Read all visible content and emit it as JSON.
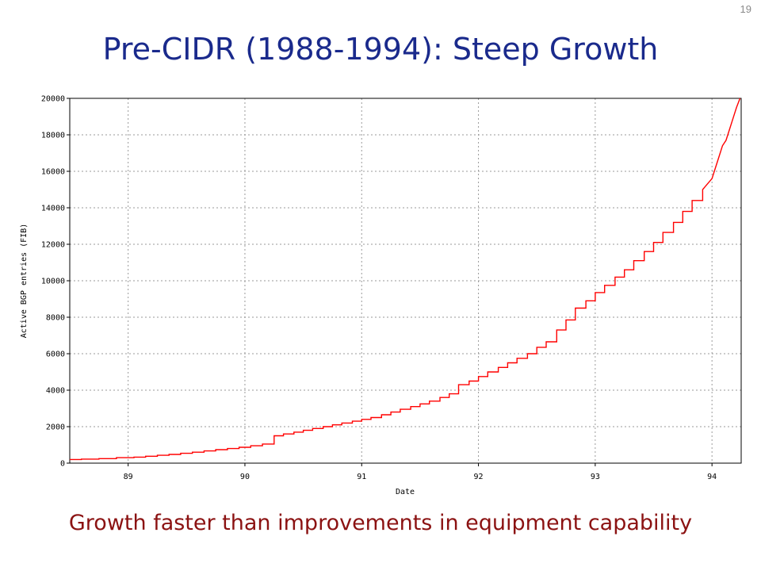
{
  "slide": {
    "number": "19",
    "title": "Pre-CIDR (1988-1994): Steep Growth",
    "caption": "Growth faster than improvements in equipment capability"
  },
  "colors": {
    "title": "#1a2a8c",
    "caption": "#8b1212",
    "series": "#ff0000",
    "grid": "#9a9a9a"
  },
  "chart_data": {
    "type": "line",
    "title": "",
    "xlabel": "Date",
    "ylabel": "Active BGP entries (FIB)",
    "xlim": [
      88.5,
      94.25
    ],
    "ylim": [
      0,
      20000
    ],
    "x_ticks": [
      "89",
      "90",
      "91",
      "92",
      "93",
      "94"
    ],
    "y_ticks": [
      "0",
      "2000",
      "4000",
      "6000",
      "8000",
      "10000",
      "12000",
      "14000",
      "16000",
      "18000",
      "20000"
    ],
    "grid": true,
    "line_style": "step",
    "series": [
      {
        "color": "#ff0000",
        "x": [
          88.5,
          88.6,
          88.75,
          88.9,
          89.05,
          89.15,
          89.25,
          89.35,
          89.45,
          89.55,
          89.65,
          89.75,
          89.85,
          89.95,
          90.05,
          90.15,
          90.25,
          90.33,
          90.42,
          90.5,
          90.58,
          90.67,
          90.75,
          90.83,
          90.92,
          91.0,
          91.08,
          91.17,
          91.25,
          91.33,
          91.42,
          91.5,
          91.58,
          91.67,
          91.75,
          91.83,
          91.92,
          92.0,
          92.08,
          92.17,
          92.25,
          92.33,
          92.42,
          92.5,
          92.58,
          92.67,
          92.75,
          92.83,
          92.92,
          93.0,
          93.08,
          93.17,
          93.25,
          93.33,
          93.42,
          93.5,
          93.58,
          93.67,
          93.75,
          93.83,
          93.92,
          94.0,
          94.03,
          94.06,
          94.09,
          94.12,
          94.15,
          94.18,
          94.21,
          94.24
        ],
        "y": [
          200,
          220,
          250,
          300,
          330,
          380,
          430,
          480,
          540,
          600,
          670,
          740,
          800,
          870,
          950,
          1050,
          1500,
          1600,
          1700,
          1800,
          1900,
          2000,
          2100,
          2200,
          2300,
          2400,
          2500,
          2650,
          2800,
          2950,
          3100,
          3250,
          3400,
          3600,
          3800,
          4300,
          4500,
          4750,
          5000,
          5250,
          5500,
          5750,
          6000,
          6350,
          6650,
          7300,
          7850,
          8500,
          8900,
          9350,
          9750,
          10200,
          10600,
          11100,
          11600,
          12100,
          12650,
          13200,
          13800,
          14400,
          15000,
          15600,
          16200,
          16800,
          17400,
          17700,
          18300,
          18900,
          19500,
          20000
        ]
      }
    ]
  }
}
